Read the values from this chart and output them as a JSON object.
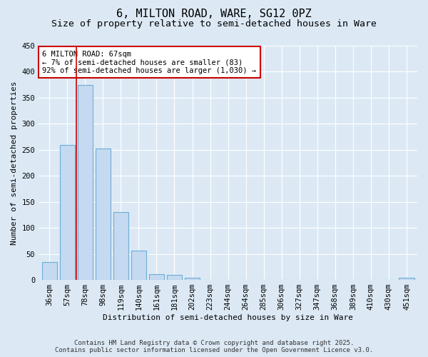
{
  "title": "6, MILTON ROAD, WARE, SG12 0PZ",
  "subtitle": "Size of property relative to semi-detached houses in Ware",
  "xlabel": "Distribution of semi-detached houses by size in Ware",
  "ylabel": "Number of semi-detached properties",
  "categories": [
    "36sqm",
    "57sqm",
    "78sqm",
    "98sqm",
    "119sqm",
    "140sqm",
    "161sqm",
    "181sqm",
    "202sqm",
    "223sqm",
    "244sqm",
    "264sqm",
    "285sqm",
    "306sqm",
    "327sqm",
    "347sqm",
    "368sqm",
    "389sqm",
    "410sqm",
    "430sqm",
    "451sqm"
  ],
  "values": [
    35,
    260,
    375,
    252,
    130,
    57,
    11,
    10,
    4,
    0,
    0,
    0,
    0,
    0,
    0,
    0,
    0,
    0,
    0,
    0,
    4
  ],
  "bar_color": "#c5d9f0",
  "bar_edge_color": "#6baed6",
  "property_line_x": 1.5,
  "annotation_text": "6 MILTON ROAD: 67sqm\n← 7% of semi-detached houses are smaller (83)\n92% of semi-detached houses are larger (1,030) →",
  "annotation_box_facecolor": "#ffffff",
  "annotation_box_edgecolor": "#cc0000",
  "vline_color": "#cc0000",
  "background_color": "#dce9f5",
  "plot_bg_color": "#dce9f5",
  "footer_line1": "Contains HM Land Registry data © Crown copyright and database right 2025.",
  "footer_line2": "Contains public sector information licensed under the Open Government Licence v3.0.",
  "ylim": [
    0,
    450
  ],
  "yticks": [
    0,
    50,
    100,
    150,
    200,
    250,
    300,
    350,
    400,
    450
  ],
  "title_fontsize": 11,
  "subtitle_fontsize": 9.5,
  "axis_label_fontsize": 8,
  "tick_fontsize": 7.5,
  "annotation_fontsize": 7.5,
  "footer_fontsize": 6.5
}
